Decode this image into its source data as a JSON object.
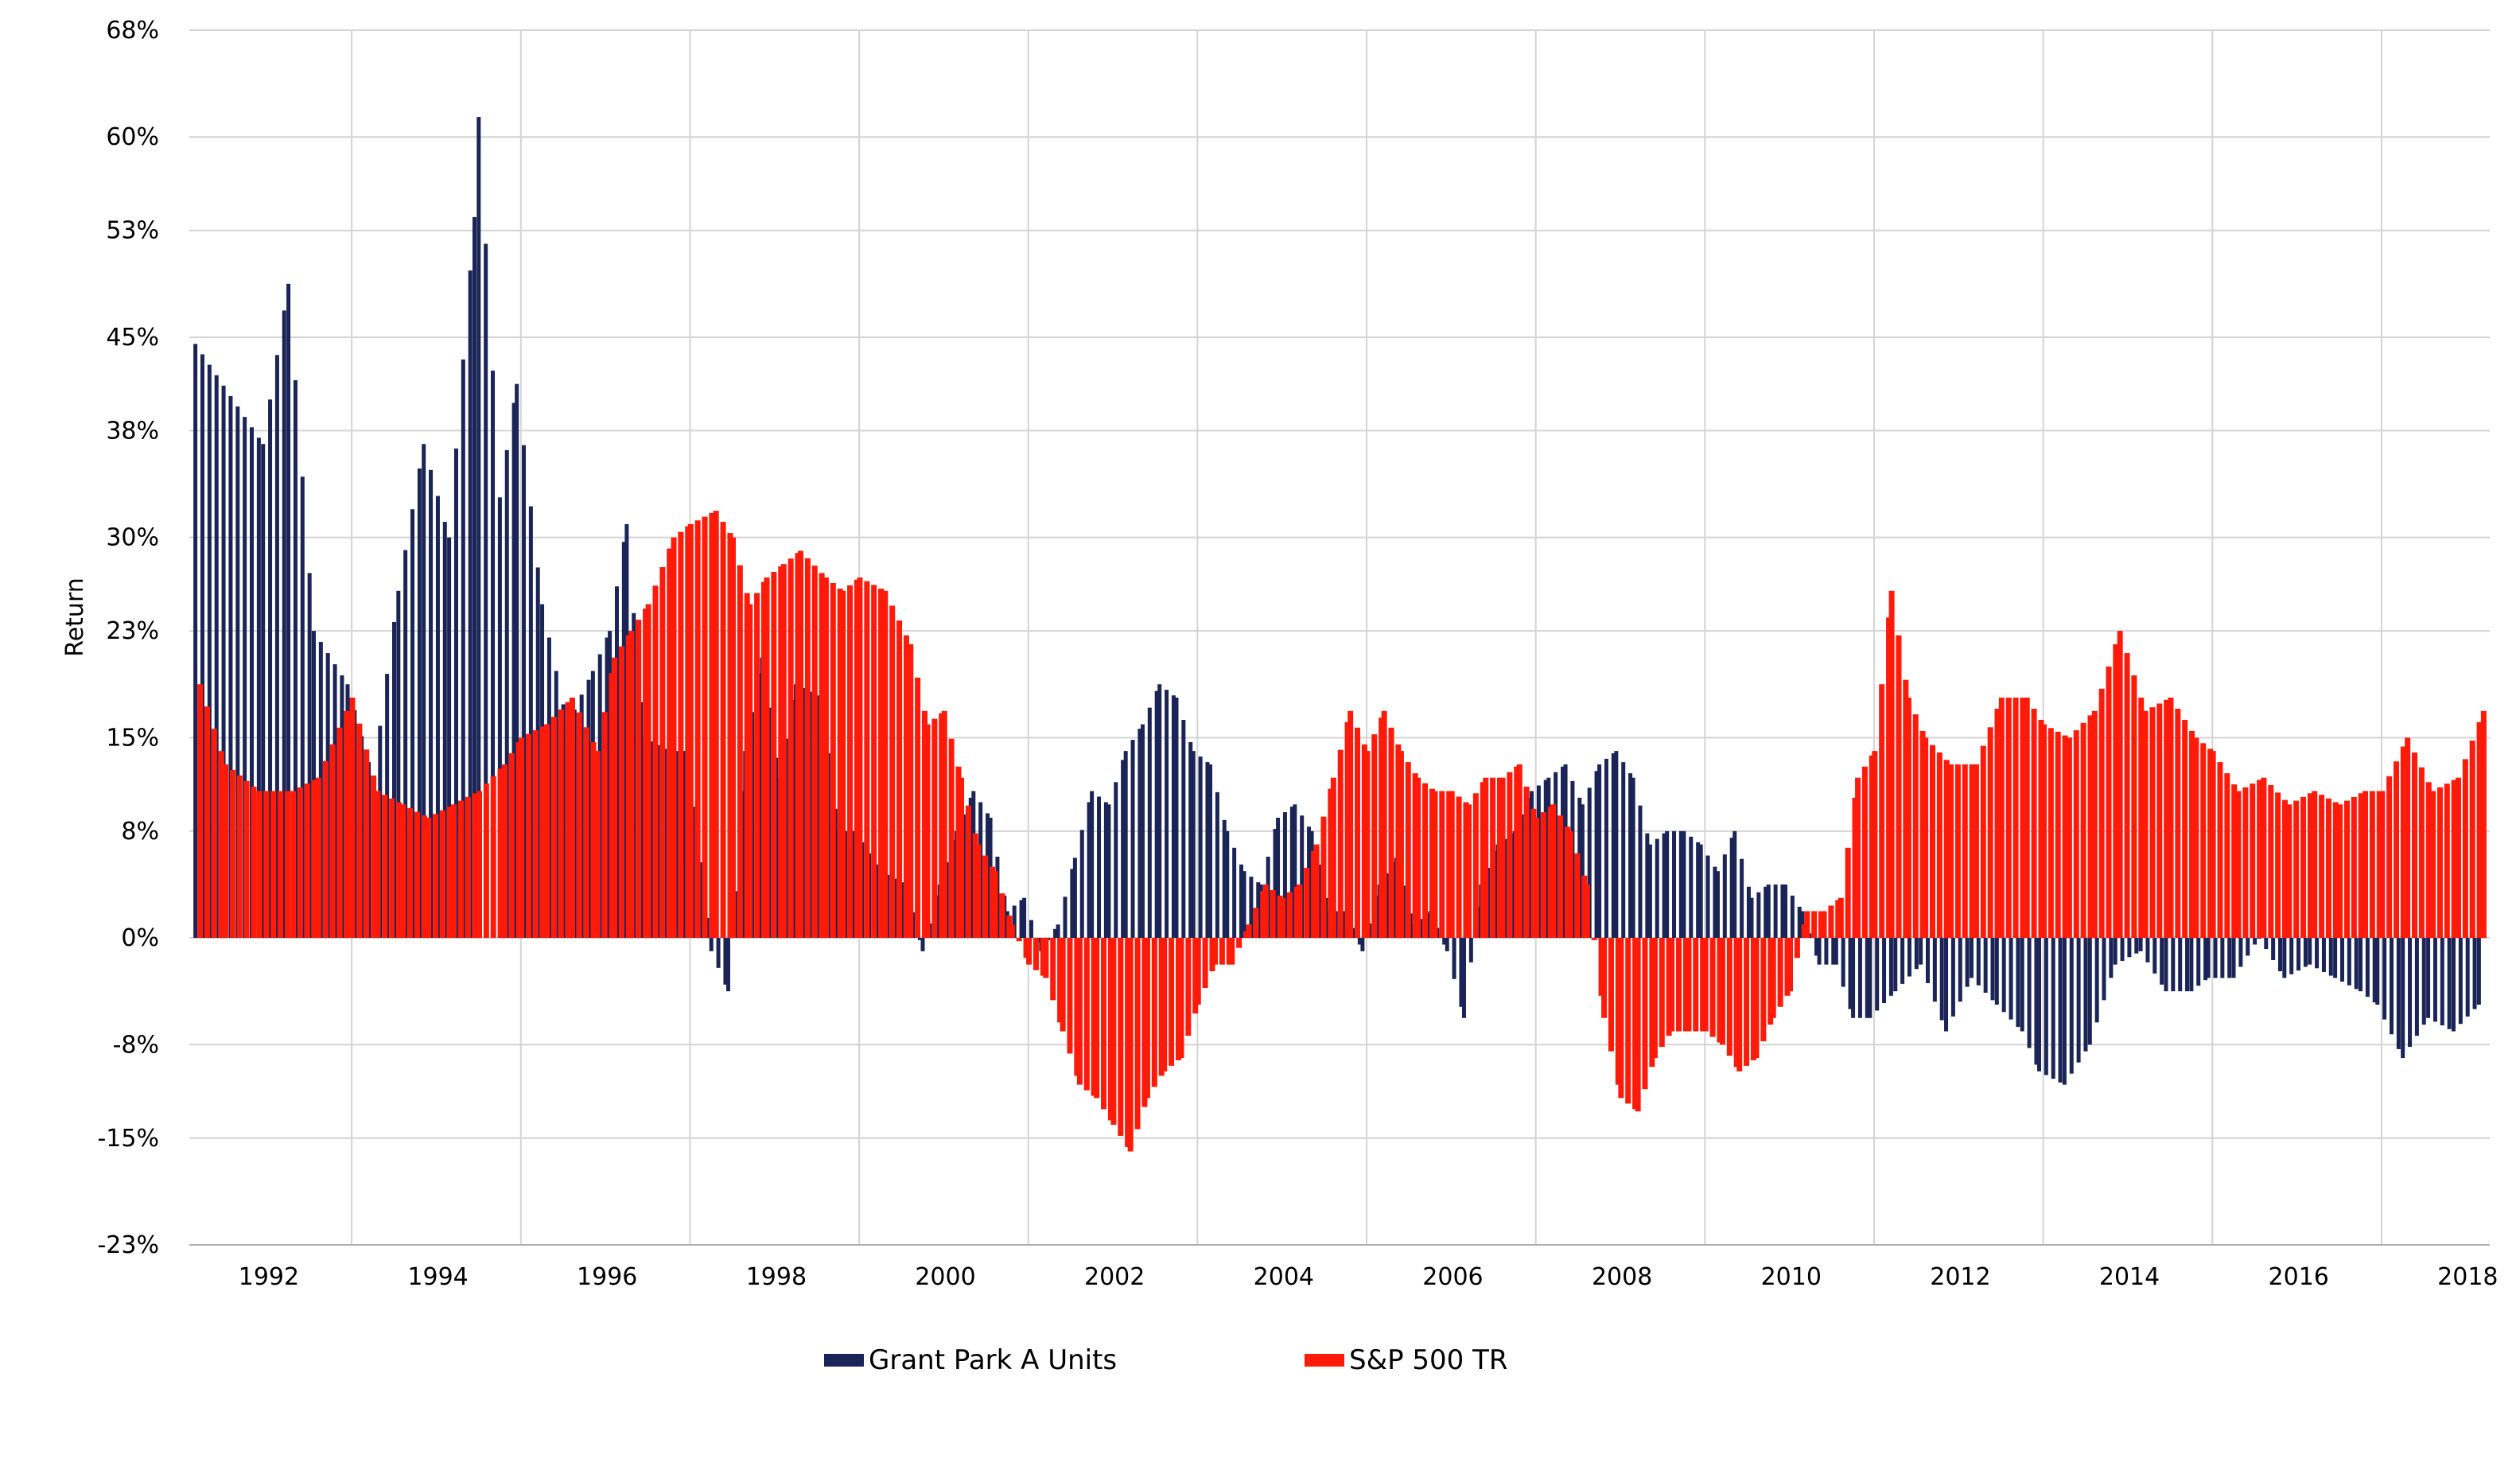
{
  "colors": {
    "grant_park": "#1a2456",
    "sp500": "#ff1a0a",
    "grid": "#d4d4d4",
    "axis": "#b0b0b0"
  },
  "chart_data": {
    "type": "bar",
    "ylabel": "Return",
    "ylim": [
      -23,
      68
    ],
    "yticks": [
      68,
      60,
      53,
      45,
      38,
      30,
      23,
      15,
      8,
      0,
      -8,
      -15,
      -23
    ],
    "ytick_labels": [
      "68%",
      "60%",
      "53%",
      "45%",
      "38%",
      "30%",
      "23%",
      "15%",
      "8%",
      "0%",
      "-8%",
      "-15%",
      "-23%"
    ],
    "xlim": [
      1991.1,
      2018.3
    ],
    "xticks": [
      1992,
      1994,
      1996,
      1998,
      2000,
      2002,
      2004,
      2006,
      2008,
      2010,
      2012,
      2014,
      2016,
      2018
    ],
    "xtick_labels": [
      "1992",
      "1994",
      "1996",
      "1998",
      "2000",
      "2002",
      "2004",
      "2006",
      "2008",
      "2010",
      "2012",
      "2014",
      "2016",
      "2018"
    ],
    "grid": true,
    "legend_position": "bottom",
    "series": [
      {
        "name": "Grant Park A Units",
        "color": "#1a2456",
        "points": [
          [
            1991.2,
            44.5
          ],
          [
            1992.0,
            37
          ],
          [
            1992.3,
            49
          ],
          [
            1992.6,
            23
          ],
          [
            1993.0,
            19
          ],
          [
            1993.3,
            12
          ],
          [
            1993.6,
            26
          ],
          [
            1993.9,
            37
          ],
          [
            1994.2,
            30
          ],
          [
            1994.5,
            54
          ],
          [
            1994.55,
            61.5
          ],
          [
            1994.8,
            33
          ],
          [
            1995.0,
            41.5
          ],
          [
            1995.3,
            25
          ],
          [
            1995.6,
            16
          ],
          [
            1995.9,
            20
          ],
          [
            1996.1,
            23
          ],
          [
            1996.3,
            31
          ],
          [
            1996.5,
            15
          ],
          [
            1996.8,
            14
          ],
          [
            1997.0,
            14
          ],
          [
            1997.3,
            -1
          ],
          [
            1997.5,
            -4
          ],
          [
            1997.7,
            14
          ],
          [
            1997.9,
            21
          ],
          [
            1998.1,
            12
          ],
          [
            1998.3,
            19
          ],
          [
            1998.6,
            18
          ],
          [
            1998.8,
            8
          ],
          [
            1999.0,
            8
          ],
          [
            1999.3,
            5
          ],
          [
            1999.6,
            4
          ],
          [
            1999.8,
            -1
          ],
          [
            2000.0,
            4
          ],
          [
            2000.2,
            8
          ],
          [
            2000.4,
            11
          ],
          [
            2000.6,
            9
          ],
          [
            2000.8,
            2
          ],
          [
            2001.0,
            3
          ],
          [
            2001.2,
            -1
          ],
          [
            2001.4,
            1
          ],
          [
            2001.6,
            6
          ],
          [
            2001.8,
            11
          ],
          [
            2002.0,
            10
          ],
          [
            2002.2,
            14
          ],
          [
            2002.4,
            16
          ],
          [
            2002.6,
            19
          ],
          [
            2002.8,
            18
          ],
          [
            2003.0,
            14
          ],
          [
            2003.2,
            13
          ],
          [
            2003.4,
            8
          ],
          [
            2003.6,
            5
          ],
          [
            2003.8,
            4
          ],
          [
            2004.0,
            9
          ],
          [
            2004.2,
            10
          ],
          [
            2004.4,
            8
          ],
          [
            2004.6,
            2
          ],
          [
            2004.8,
            2
          ],
          [
            2005.0,
            -1
          ],
          [
            2005.2,
            4
          ],
          [
            2005.4,
            6
          ],
          [
            2005.6,
            1
          ],
          [
            2005.8,
            2
          ],
          [
            2006.0,
            -1
          ],
          [
            2006.2,
            -6
          ],
          [
            2006.4,
            4
          ],
          [
            2006.6,
            7
          ],
          [
            2006.8,
            8
          ],
          [
            2007.0,
            11
          ],
          [
            2007.2,
            12
          ],
          [
            2007.4,
            13
          ],
          [
            2007.6,
            10
          ],
          [
            2007.8,
            13
          ],
          [
            2008.0,
            14
          ],
          [
            2008.2,
            12
          ],
          [
            2008.4,
            7
          ],
          [
            2008.6,
            8
          ],
          [
            2008.8,
            8
          ],
          [
            2009.0,
            7
          ],
          [
            2009.2,
            5
          ],
          [
            2009.4,
            8
          ],
          [
            2009.6,
            3
          ],
          [
            2009.8,
            4
          ],
          [
            2010.0,
            4
          ],
          [
            2010.2,
            2
          ],
          [
            2010.4,
            -2
          ],
          [
            2010.6,
            -2
          ],
          [
            2010.8,
            -6
          ],
          [
            2011.0,
            -6
          ],
          [
            2011.3,
            -4
          ],
          [
            2011.6,
            -2
          ],
          [
            2011.9,
            -7
          ],
          [
            2012.2,
            -3
          ],
          [
            2012.5,
            -5
          ],
          [
            2012.8,
            -7
          ],
          [
            2013.0,
            -10
          ],
          [
            2013.3,
            -11
          ],
          [
            2013.6,
            -8
          ],
          [
            2013.9,
            -2
          ],
          [
            2014.2,
            -1
          ],
          [
            2014.5,
            -4
          ],
          [
            2014.8,
            -4
          ],
          [
            2015.0,
            -3
          ],
          [
            2015.3,
            -3
          ],
          [
            2015.6,
            0
          ],
          [
            2015.9,
            -3
          ],
          [
            2016.2,
            -2
          ],
          [
            2016.5,
            -3
          ],
          [
            2016.8,
            -4
          ],
          [
            2017.0,
            -5
          ],
          [
            2017.3,
            -9
          ],
          [
            2017.6,
            -6
          ],
          [
            2017.9,
            -7
          ],
          [
            2018.2,
            -5
          ]
        ]
      },
      {
        "name": "S&P 500 TR",
        "color": "#ff1a0a",
        "points": [
          [
            1991.2,
            19
          ],
          [
            1991.5,
            13
          ],
          [
            1991.9,
            11
          ],
          [
            1992.3,
            11
          ],
          [
            1992.6,
            12
          ],
          [
            1993.0,
            18
          ],
          [
            1993.3,
            11
          ],
          [
            1993.6,
            10
          ],
          [
            1993.9,
            9
          ],
          [
            1994.2,
            10
          ],
          [
            1994.5,
            11
          ],
          [
            1994.8,
            13
          ],
          [
            1995.0,
            15
          ],
          [
            1995.3,
            16
          ],
          [
            1995.6,
            18
          ],
          [
            1995.9,
            14
          ],
          [
            1996.1,
            21
          ],
          [
            1996.3,
            23
          ],
          [
            1996.5,
            25
          ],
          [
            1996.8,
            30
          ],
          [
            1997.0,
            31
          ],
          [
            1997.3,
            32
          ],
          [
            1997.5,
            30
          ],
          [
            1997.7,
            25
          ],
          [
            1997.9,
            27
          ],
          [
            1998.1,
            28
          ],
          [
            1998.3,
            29
          ],
          [
            1998.6,
            27
          ],
          [
            1998.8,
            26
          ],
          [
            1999.0,
            27
          ],
          [
            1999.3,
            26
          ],
          [
            1999.6,
            22
          ],
          [
            1999.8,
            16
          ],
          [
            2000.0,
            17
          ],
          [
            2000.2,
            12
          ],
          [
            2000.4,
            7
          ],
          [
            2000.6,
            5
          ],
          [
            2000.8,
            1
          ],
          [
            2001.0,
            -2
          ],
          [
            2001.2,
            -3
          ],
          [
            2001.4,
            -7
          ],
          [
            2001.6,
            -11
          ],
          [
            2001.8,
            -12
          ],
          [
            2002.0,
            -14
          ],
          [
            2002.2,
            -16
          ],
          [
            2002.4,
            -12
          ],
          [
            2002.6,
            -10
          ],
          [
            2002.8,
            -9
          ],
          [
            2003.0,
            -5
          ],
          [
            2003.2,
            -2
          ],
          [
            2003.4,
            -2
          ],
          [
            2003.6,
            1
          ],
          [
            2003.8,
            4
          ],
          [
            2004.0,
            3
          ],
          [
            2004.2,
            4
          ],
          [
            2004.4,
            7
          ],
          [
            2004.6,
            12
          ],
          [
            2004.8,
            17
          ],
          [
            2005.0,
            14
          ],
          [
            2005.2,
            17
          ],
          [
            2005.4,
            14
          ],
          [
            2005.6,
            12
          ],
          [
            2005.8,
            11
          ],
          [
            2006.0,
            11
          ],
          [
            2006.2,
            10
          ],
          [
            2006.4,
            12
          ],
          [
            2006.6,
            12
          ],
          [
            2006.8,
            13
          ],
          [
            2007.0,
            9
          ],
          [
            2007.2,
            10
          ],
          [
            2007.4,
            8
          ],
          [
            2007.6,
            4
          ],
          [
            2007.8,
            -6
          ],
          [
            2008.0,
            -12
          ],
          [
            2008.2,
            -13
          ],
          [
            2008.4,
            -9
          ],
          [
            2008.6,
            -7
          ],
          [
            2008.8,
            -7
          ],
          [
            2009.0,
            -7
          ],
          [
            2009.2,
            -8
          ],
          [
            2009.4,
            -10
          ],
          [
            2009.6,
            -9
          ],
          [
            2009.8,
            -6
          ],
          [
            2010.0,
            -4
          ],
          [
            2010.2,
            2
          ],
          [
            2010.4,
            2
          ],
          [
            2010.6,
            3
          ],
          [
            2010.8,
            12
          ],
          [
            2011.0,
            14
          ],
          [
            2011.2,
            26
          ],
          [
            2011.4,
            18
          ],
          [
            2011.6,
            15
          ],
          [
            2011.9,
            13
          ],
          [
            2012.2,
            13
          ],
          [
            2012.5,
            18
          ],
          [
            2012.8,
            18
          ],
          [
            2013.0,
            16
          ],
          [
            2013.3,
            15
          ],
          [
            2013.6,
            17
          ],
          [
            2013.9,
            23
          ],
          [
            2014.2,
            17
          ],
          [
            2014.5,
            18
          ],
          [
            2014.8,
            15
          ],
          [
            2015.0,
            14
          ],
          [
            2015.3,
            11
          ],
          [
            2015.6,
            12
          ],
          [
            2015.9,
            10
          ],
          [
            2016.2,
            11
          ],
          [
            2016.5,
            10
          ],
          [
            2016.8,
            11
          ],
          [
            2017.0,
            11
          ],
          [
            2017.3,
            15
          ],
          [
            2017.6,
            11
          ],
          [
            2017.9,
            12
          ],
          [
            2018.2,
            17
          ]
        ]
      }
    ]
  }
}
